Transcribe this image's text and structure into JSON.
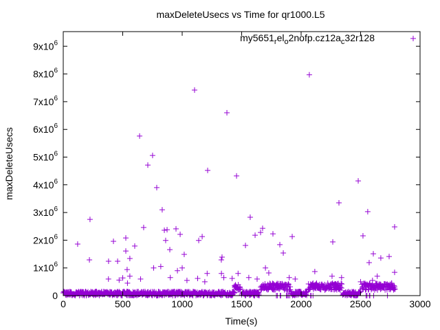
{
  "chart_data": {
    "type": "scatter",
    "title": "maxDeleteUsecs vs Time for qr1000.L5",
    "xlabel": "Time(s)",
    "ylabel": "maxDeleteUsecs",
    "xlim": [
      0,
      3000
    ],
    "ylim": [
      0,
      9000000
    ],
    "x_ticks": [
      "0",
      "500",
      "1000",
      "1500",
      "2000",
      "2500",
      "3000"
    ],
    "x_tick_values": [
      0,
      500,
      1000,
      1500,
      2000,
      2500,
      3000
    ],
    "y_tick_values": [
      0,
      1000000,
      2000000,
      3000000,
      4000000,
      5000000,
      6000000,
      7000000,
      8000000,
      9000000
    ],
    "y_ticks": [
      {
        "mantissa": "0",
        "exp": ""
      },
      {
        "mantissa": "1x10",
        "exp": "6"
      },
      {
        "mantissa": "2x10",
        "exp": "6"
      },
      {
        "mantissa": "3x10",
        "exp": "6"
      },
      {
        "mantissa": "4x10",
        "exp": "6"
      },
      {
        "mantissa": "5x10",
        "exp": "6"
      },
      {
        "mantissa": "6x10",
        "exp": "6"
      },
      {
        "mantissa": "7x10",
        "exp": "6"
      },
      {
        "mantissa": "8x10",
        "exp": "6"
      },
      {
        "mantissa": "9x10",
        "exp": "6"
      }
    ],
    "grid": false,
    "legend_position": "top-right",
    "series": [
      {
        "name": "my5651_rel_o2nofp.cz12a_c32r128",
        "name_parts": [
          {
            "t": "my5651",
            "sub": false
          },
          {
            "t": "r",
            "sub": true
          },
          {
            "t": "el",
            "sub": false
          },
          {
            "t": "o",
            "sub": true
          },
          {
            "t": "2nofp.cz12a",
            "sub": false
          },
          {
            "t": "c",
            "sub": true
          },
          {
            "t": "32r128",
            "sub": false
          }
        ],
        "color": "#9400d3",
        "marker": "plus",
        "baseline_segments": [
          {
            "from": 0,
            "to": 1440,
            "low": 0,
            "high": 150000
          },
          {
            "from": 1440,
            "to": 1490,
            "low": 200000,
            "high": 400000
          },
          {
            "from": 1500,
            "to": 1650,
            "low": 0,
            "high": 150000
          },
          {
            "from": 1660,
            "to": 1910,
            "low": 200000,
            "high": 450000
          },
          {
            "from": 1915,
            "to": 2050,
            "low": 0,
            "high": 150000
          },
          {
            "from": 2060,
            "to": 2340,
            "low": 200000,
            "high": 450000
          },
          {
            "from": 2350,
            "to": 2500,
            "low": 0,
            "high": 150000
          },
          {
            "from": 2510,
            "to": 2790,
            "low": 200000,
            "high": 450000
          }
        ],
        "outliers": [
          [
            121,
            1860000
          ],
          [
            220,
            1290000
          ],
          [
            225,
            2750000
          ],
          [
            381,
            1240000
          ],
          [
            422,
            1960000
          ],
          [
            457,
            1240000
          ],
          [
            526,
            2080000
          ],
          [
            526,
            1610000
          ],
          [
            537,
            940000
          ],
          [
            560,
            1340000
          ],
          [
            601,
            1790000
          ],
          [
            650,
            600000
          ],
          [
            642,
            5760000
          ],
          [
            676,
            2460000
          ],
          [
            711,
            4710000
          ],
          [
            751,
            5060000
          ],
          [
            786,
            3900000
          ],
          [
            832,
            3100000
          ],
          [
            850,
            2360000
          ],
          [
            861,
            1990000
          ],
          [
            873,
            2380000
          ],
          [
            896,
            1660000
          ],
          [
            948,
            2410000
          ],
          [
            983,
            2210000
          ],
          [
            1017,
            1490000
          ],
          [
            1104,
            7420000
          ],
          [
            1139,
            1990000
          ],
          [
            1168,
            2130000
          ],
          [
            1214,
            4520000
          ],
          [
            1329,
            1290000
          ],
          [
            1335,
            1390000
          ],
          [
            1376,
            6600000
          ],
          [
            1457,
            4320000
          ],
          [
            1532,
            1810000
          ],
          [
            1572,
            2830000
          ],
          [
            1613,
            2180000
          ],
          [
            1659,
            2280000
          ],
          [
            1676,
            2430000
          ],
          [
            1728,
            820000
          ],
          [
            1763,
            2230000
          ],
          [
            1821,
            1840000
          ],
          [
            1850,
            1540000
          ],
          [
            1925,
            2130000
          ],
          [
            2069,
            7970000
          ],
          [
            2115,
            870000
          ],
          [
            2266,
            1940000
          ],
          [
            2318,
            3350000
          ],
          [
            2480,
            4140000
          ],
          [
            2520,
            2160000
          ],
          [
            2560,
            3030000
          ],
          [
            2607,
            1510000
          ],
          [
            2572,
            1190000
          ],
          [
            2670,
            1360000
          ],
          [
            2740,
            1410000
          ],
          [
            2786,
            2480000
          ],
          [
            2786,
            840000
          ],
          [
            380,
            600000
          ],
          [
            470,
            560000
          ],
          [
            500,
            640000
          ],
          [
            540,
            450000
          ],
          [
            560,
            700000
          ],
          [
            760,
            1000000
          ],
          [
            820,
            1050000
          ],
          [
            900,
            650000
          ],
          [
            960,
            900000
          ],
          [
            1000,
            1000000
          ],
          [
            1040,
            550000
          ],
          [
            1130,
            620000
          ],
          [
            1190,
            500000
          ],
          [
            1210,
            800000
          ],
          [
            1330,
            800000
          ],
          [
            1350,
            650000
          ],
          [
            1420,
            620000
          ],
          [
            1470,
            800000
          ],
          [
            1560,
            650000
          ],
          [
            1630,
            600000
          ],
          [
            1700,
            1000000
          ],
          [
            1900,
            650000
          ],
          [
            1950,
            600000
          ],
          [
            2100,
            450000
          ],
          [
            2260,
            700000
          ],
          [
            2340,
            650000
          ],
          [
            2500,
            500000
          ],
          [
            2600,
            550000
          ],
          [
            2640,
            700000
          ],
          [
            2760,
            450000
          ]
        ]
      }
    ]
  }
}
